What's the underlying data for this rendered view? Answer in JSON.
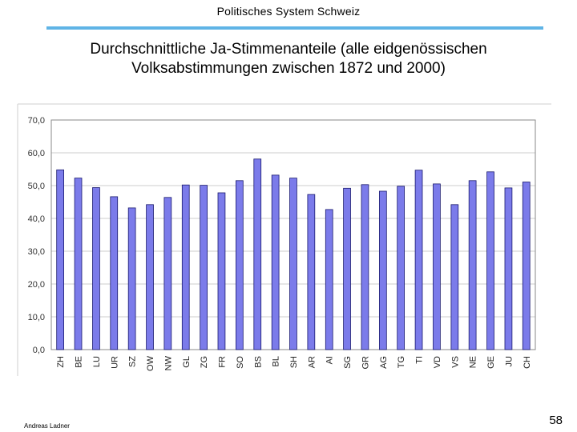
{
  "header": {
    "title": "Politisches System Schweiz"
  },
  "slide": {
    "title_line1": "Durchschnittliche Ja-Stimmenanteile (alle eidgenössischen",
    "title_line2": "Volksabstimmungen zwischen 1872 und 2000)"
  },
  "footer": {
    "author": "Andreas Ladner",
    "page": "58"
  },
  "colors": {
    "bar": "#7b7bea",
    "bar_edge": "#1a1a6e",
    "plot_border": "#888888",
    "grid": "#cccccc",
    "header_rule": "#5fb4e6"
  },
  "chart_data": {
    "type": "bar",
    "title": "",
    "xlabel": "",
    "ylabel": "",
    "categories": [
      "ZH",
      "BE",
      "LU",
      "UR",
      "SZ",
      "OW",
      "NW",
      "GL",
      "ZG",
      "FR",
      "SO",
      "BS",
      "BL",
      "SH",
      "AR",
      "AI",
      "SG",
      "GR",
      "AG",
      "TG",
      "TI",
      "VD",
      "VS",
      "NE",
      "GE",
      "JU",
      "CH"
    ],
    "values": [
      54.8,
      52.3,
      49.4,
      46.6,
      43.2,
      44.2,
      46.4,
      50.2,
      50.1,
      47.8,
      51.5,
      58.1,
      53.2,
      52.3,
      47.3,
      42.7,
      49.2,
      50.3,
      48.3,
      49.8,
      54.7,
      50.5,
      44.2,
      51.5,
      54.2,
      49.3,
      51.1
    ],
    "y_ticks": [
      "0,0",
      "10,0",
      "20,0",
      "30,0",
      "40,0",
      "50,0",
      "60,0",
      "70,0"
    ],
    "ylim": [
      0,
      70
    ],
    "grid": true
  }
}
